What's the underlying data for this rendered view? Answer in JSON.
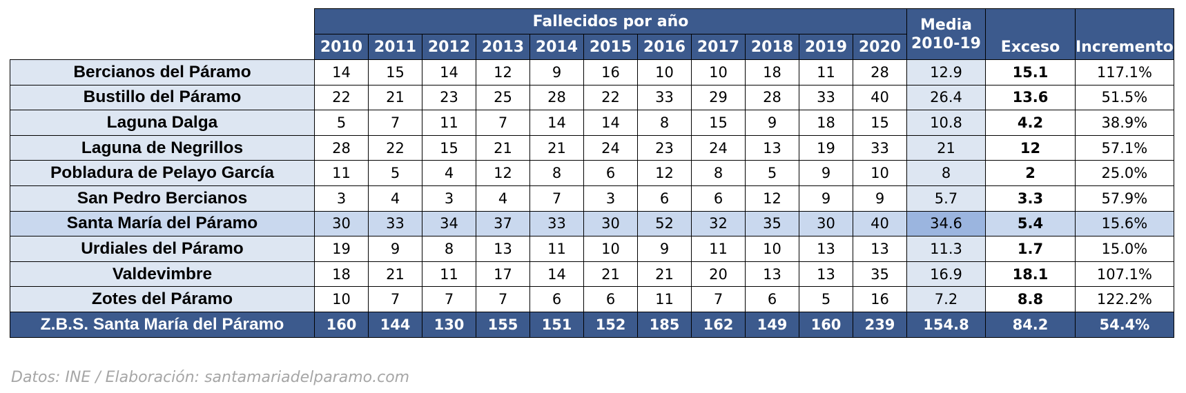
{
  "header": {
    "group_label": "Fallecidos por año",
    "years": [
      "2010",
      "2011",
      "2012",
      "2013",
      "2014",
      "2015",
      "2016",
      "2017",
      "2018",
      "2019",
      "2020"
    ],
    "media_line1": "Media",
    "media_line2": "2010-19",
    "exceso": "Exceso",
    "incremento": "Incremento"
  },
  "rows": [
    {
      "name": "Bercianos del Páramo",
      "values": [
        "14",
        "15",
        "14",
        "12",
        "9",
        "16",
        "10",
        "10",
        "18",
        "11",
        "28"
      ],
      "media": "12.9",
      "exceso": "15.1",
      "incremento": "117.1%"
    },
    {
      "name": "Bustillo del Páramo",
      "values": [
        "22",
        "21",
        "23",
        "25",
        "28",
        "22",
        "33",
        "29",
        "28",
        "33",
        "40"
      ],
      "media": "26.4",
      "exceso": "13.6",
      "incremento": "51.5%"
    },
    {
      "name": "Laguna Dalga",
      "values": [
        "5",
        "7",
        "11",
        "7",
        "14",
        "14",
        "8",
        "15",
        "9",
        "18",
        "15"
      ],
      "media": "10.8",
      "exceso": "4.2",
      "incremento": "38.9%"
    },
    {
      "name": "Laguna de Negrillos",
      "values": [
        "28",
        "22",
        "15",
        "21",
        "21",
        "24",
        "23",
        "24",
        "13",
        "19",
        "33"
      ],
      "media": "21",
      "exceso": "12",
      "incremento": "57.1%"
    },
    {
      "name": "Pobladura de Pelayo García",
      "values": [
        "11",
        "5",
        "4",
        "12",
        "8",
        "6",
        "12",
        "8",
        "5",
        "9",
        "10"
      ],
      "media": "8",
      "exceso": "2",
      "incremento": "25.0%"
    },
    {
      "name": "San Pedro Bercianos",
      "values": [
        "3",
        "4",
        "3",
        "4",
        "7",
        "3",
        "6",
        "6",
        "12",
        "9",
        "9"
      ],
      "media": "5.7",
      "exceso": "3.3",
      "incremento": "57.9%"
    },
    {
      "name": "Santa María del Páramo",
      "values": [
        "30",
        "33",
        "34",
        "37",
        "33",
        "30",
        "52",
        "32",
        "35",
        "30",
        "40"
      ],
      "media": "34.6",
      "exceso": "5.4",
      "incremento": "15.6%"
    },
    {
      "name": "Urdiales del Páramo",
      "values": [
        "19",
        "9",
        "8",
        "13",
        "11",
        "10",
        "9",
        "11",
        "10",
        "13",
        "13"
      ],
      "media": "11.3",
      "exceso": "1.7",
      "incremento": "15.0%"
    },
    {
      "name": "Valdevimbre",
      "values": [
        "18",
        "21",
        "11",
        "17",
        "14",
        "21",
        "21",
        "20",
        "13",
        "13",
        "35"
      ],
      "media": "16.9",
      "exceso": "18.1",
      "incremento": "107.1%"
    },
    {
      "name": "Zotes del Páramo",
      "values": [
        "10",
        "7",
        "7",
        "7",
        "6",
        "6",
        "11",
        "7",
        "6",
        "5",
        "16"
      ],
      "media": "7.2",
      "exceso": "8.8",
      "incremento": "122.2%"
    }
  ],
  "highlight_row_index": 6,
  "total": {
    "name": "Z.B.S. Santa María del Páramo",
    "values": [
      "160",
      "144",
      "130",
      "155",
      "151",
      "152",
      "185",
      "162",
      "149",
      "160",
      "239"
    ],
    "media": "154.8",
    "exceso": "84.2",
    "incremento": "54.4%"
  },
  "source": "Datos: INE / Elaboración: santamariadelparamo.com",
  "colors": {
    "header_bg": "#3c5a8d",
    "name_bg": "#dde6f2",
    "highlight_bg": "#c9d8ee",
    "highlight_media_bg": "#9bb5df",
    "source_text": "#a6a6a6"
  }
}
